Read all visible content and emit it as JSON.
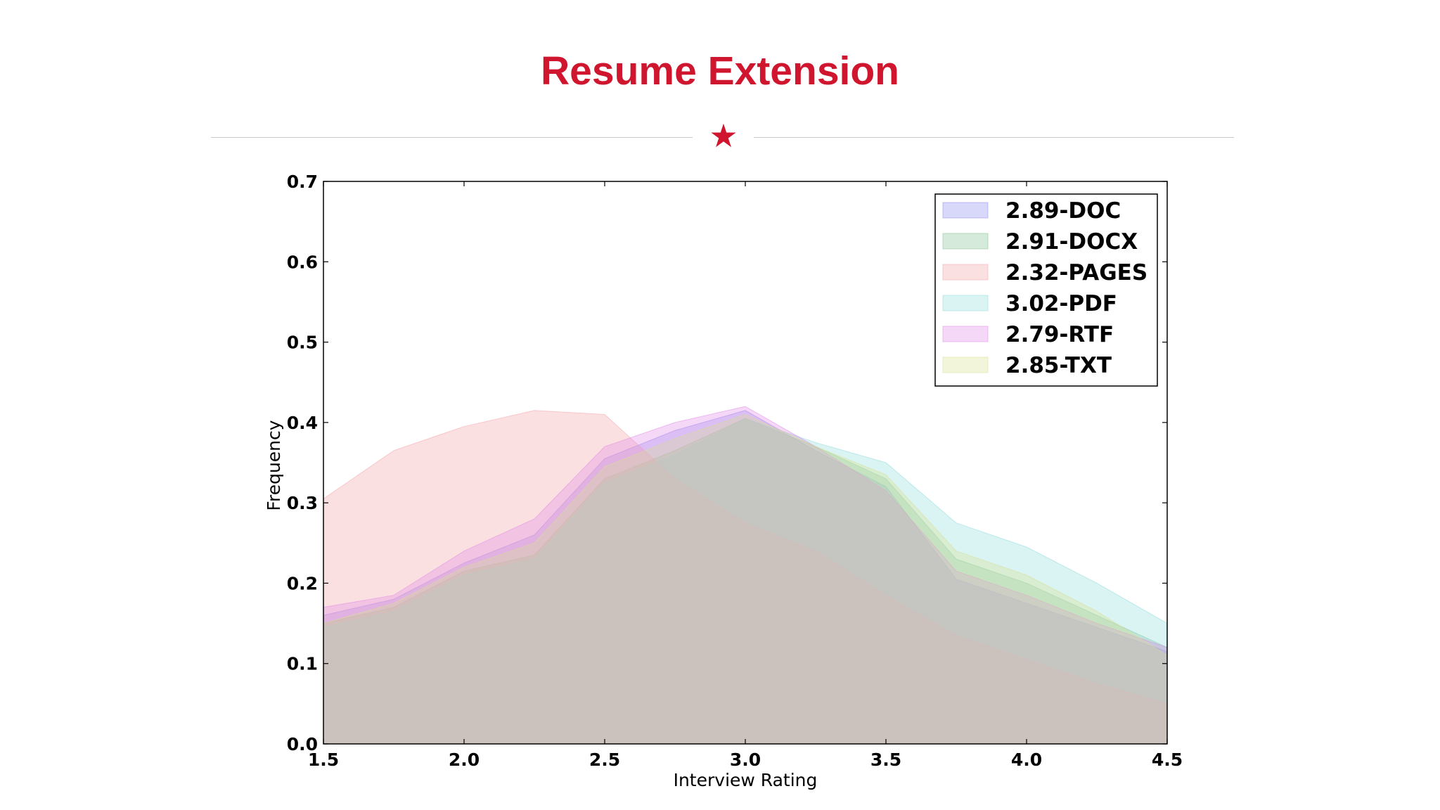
{
  "slide": {
    "title": "Resume Extension",
    "accent_color": "#d0152f",
    "divider_icon": "star"
  },
  "chart_data": {
    "type": "area",
    "title": "",
    "xlabel": "Interview Rating",
    "ylabel": "Frequency",
    "xlim": [
      1.5,
      4.5
    ],
    "ylim": [
      0.0,
      0.7
    ],
    "xticks": [
      "1.5",
      "2.0",
      "2.5",
      "3.0",
      "3.5",
      "4.0",
      "4.5"
    ],
    "yticks": [
      "0.0",
      "0.1",
      "0.2",
      "0.3",
      "0.4",
      "0.5",
      "0.6",
      "0.7"
    ],
    "grid": false,
    "legend_position": "top-right",
    "x": [
      1.5,
      1.75,
      2.0,
      2.25,
      2.5,
      2.75,
      3.0,
      3.25,
      3.5,
      3.75,
      4.0,
      4.25,
      4.5
    ],
    "series": [
      {
        "name": "2.89-DOC",
        "color": "#8a8af0",
        "values": [
          0.16,
          0.18,
          0.225,
          0.26,
          0.355,
          0.39,
          0.415,
          0.365,
          0.32,
          0.205,
          0.175,
          0.145,
          0.115
        ]
      },
      {
        "name": "2.91-DOCX",
        "color": "#7fbf8f",
        "values": [
          0.15,
          0.17,
          0.215,
          0.235,
          0.33,
          0.365,
          0.405,
          0.37,
          0.33,
          0.23,
          0.2,
          0.16,
          0.12
        ]
      },
      {
        "name": "2.32-PAGES",
        "color": "#f4a0a8",
        "values": [
          0.305,
          0.365,
          0.395,
          0.415,
          0.41,
          0.33,
          0.275,
          0.24,
          0.185,
          0.135,
          0.105,
          0.075,
          0.05
        ]
      },
      {
        "name": "3.02-PDF",
        "color": "#8fdcdc",
        "values": [
          0.145,
          0.165,
          0.21,
          0.23,
          0.325,
          0.36,
          0.405,
          0.375,
          0.35,
          0.275,
          0.245,
          0.2,
          0.15
        ]
      },
      {
        "name": "2.79-RTF",
        "color": "#e08ae6",
        "values": [
          0.17,
          0.185,
          0.24,
          0.28,
          0.37,
          0.4,
          0.42,
          0.37,
          0.315,
          0.215,
          0.185,
          0.15,
          0.12
        ]
      },
      {
        "name": "2.85-TXT",
        "color": "#d8e090",
        "values": [
          0.15,
          0.175,
          0.22,
          0.25,
          0.345,
          0.38,
          0.41,
          0.37,
          0.335,
          0.24,
          0.21,
          0.165,
          0.11
        ]
      }
    ]
  }
}
